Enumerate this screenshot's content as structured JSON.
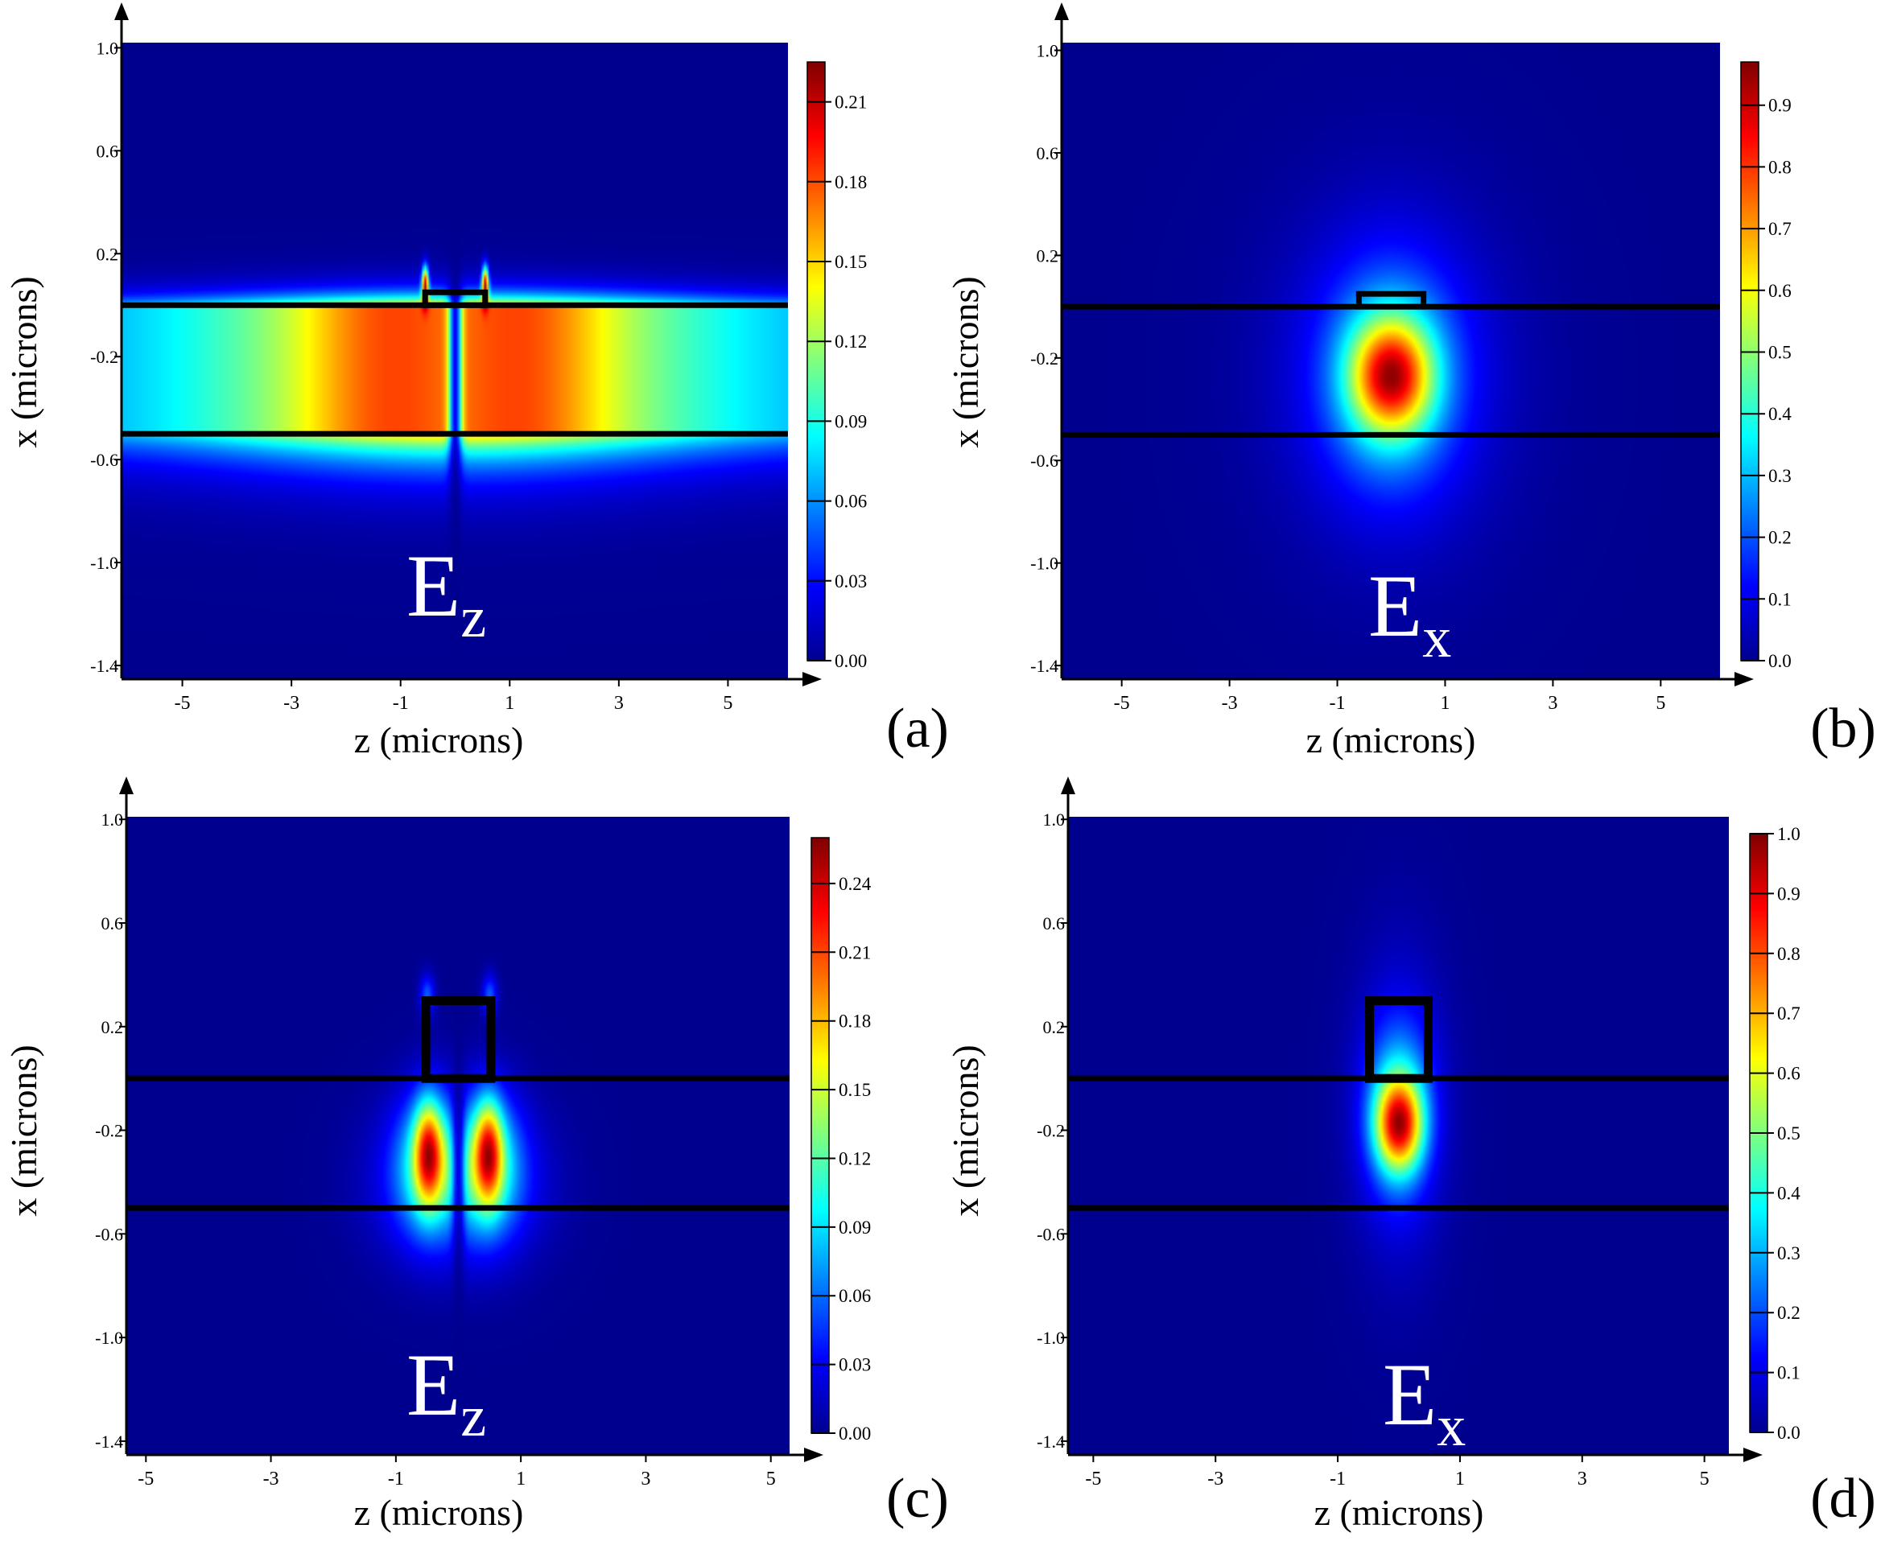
{
  "figure": {
    "colormap": [
      "#00008f",
      "#0000ff",
      "#007fff",
      "#00ffff",
      "#7fff7f",
      "#ffff00",
      "#ff7f00",
      "#ff0000",
      "#7f0000"
    ]
  },
  "chart_data": [
    {
      "id": "a",
      "type": "heatmap",
      "panel_label": "(a)",
      "field_label": "E",
      "field_subscript": "z",
      "xlabel": "z (microns)",
      "ylabel": "x (microns)",
      "xlim": [
        -6.1,
        6.1
      ],
      "ylim": [
        -1.45,
        1.02
      ],
      "xticks": [
        -5,
        -3,
        -1,
        1,
        3,
        5
      ],
      "xtick_labels": [
        "-5",
        "-3",
        "-1",
        "1",
        "3",
        "5"
      ],
      "yticks": [
        1.0,
        0.6,
        0.2,
        -0.2,
        -0.6,
        -1.0,
        -1.4
      ],
      "ytick_labels": [
        "1.0",
        "0.6",
        "0.2",
        "-0.2",
        "-0.6",
        "-1.0",
        "-1.4"
      ],
      "colorbar": {
        "min": 0,
        "max": 0.225,
        "ticks": [
          0.0,
          0.03,
          0.06,
          0.09,
          0.12,
          0.15,
          0.18,
          0.21
        ],
        "tick_labels": [
          "0.00",
          "0.03",
          "0.06",
          "0.09",
          "0.12",
          "0.15",
          "0.18",
          "0.21"
        ]
      },
      "structure": {
        "layer_top": 0.0,
        "layer_bottom": -0.5,
        "rib_halfwidth": 0.55,
        "rib_top": 0.05
      },
      "field_model": "ez_planar"
    },
    {
      "id": "b",
      "type": "heatmap",
      "panel_label": "(b)",
      "field_label": "E",
      "field_subscript": "x",
      "xlabel": "z (microns)",
      "ylabel": "x (microns)",
      "xlim": [
        -6.1,
        6.1
      ],
      "ylim": [
        -1.45,
        1.03
      ],
      "xticks": [
        -5,
        -3,
        -1,
        1,
        3,
        5
      ],
      "xtick_labels": [
        "-5",
        "-3",
        "-1",
        "1",
        "3",
        "5"
      ],
      "yticks": [
        1.0,
        0.6,
        0.2,
        -0.2,
        -0.6,
        -1.0,
        -1.4
      ],
      "ytick_labels": [
        "1.0",
        "0.6",
        "0.2",
        "-0.2",
        "-0.6",
        "-1.0",
        "-1.4"
      ],
      "colorbar": {
        "min": 0,
        "max": 0.97,
        "ticks": [
          0.0,
          0.1,
          0.2,
          0.3,
          0.4,
          0.5,
          0.6,
          0.7,
          0.8,
          0.9
        ],
        "tick_labels": [
          "0.0",
          "0.1",
          "0.2",
          "0.3",
          "0.4",
          "0.5",
          "0.6",
          "0.7",
          "0.8",
          "0.9"
        ]
      },
      "structure": {
        "layer_top": 0.0,
        "layer_bottom": -0.5,
        "rib_halfwidth": 0.6,
        "rib_top": 0.05
      },
      "field_model": "ex_planar"
    },
    {
      "id": "c",
      "type": "heatmap",
      "panel_label": "(c)",
      "field_label": "E",
      "field_subscript": "z",
      "xlabel": "z (microns)",
      "ylabel": "x (microns)",
      "xlim": [
        -5.3,
        5.3
      ],
      "ylim": [
        -1.45,
        1.01
      ],
      "xticks": [
        -5,
        -3,
        -1,
        1,
        3,
        5
      ],
      "xtick_labels": [
        "-5",
        "-3",
        "-1",
        "1",
        "3",
        "5"
      ],
      "yticks": [
        1.0,
        0.6,
        0.2,
        -0.2,
        -0.6,
        -1.0,
        -1.4
      ],
      "ytick_labels": [
        "1.0",
        "0.6",
        "0.2",
        "-0.2",
        "-0.6",
        "-1.0",
        "-1.4"
      ],
      "colorbar": {
        "min": 0,
        "max": 0.26,
        "ticks": [
          0.0,
          0.03,
          0.06,
          0.09,
          0.12,
          0.15,
          0.18,
          0.21,
          0.24
        ],
        "tick_labels": [
          "0.00",
          "0.03",
          "0.06",
          "0.09",
          "0.12",
          "0.15",
          "0.18",
          "0.21",
          "0.24"
        ]
      },
      "structure": {
        "layer_top": 0.0,
        "layer_bottom": -0.5,
        "rib_halfwidth": 0.52,
        "rib_top": 0.3
      },
      "field_model": "ez_rib"
    },
    {
      "id": "d",
      "type": "heatmap",
      "panel_label": "(d)",
      "field_label": "E",
      "field_subscript": "x",
      "xlabel": "z (microns)",
      "ylabel": "x (microns)",
      "xlim": [
        -5.4,
        5.4
      ],
      "ylim": [
        -1.45,
        1.01
      ],
      "xticks": [
        -5,
        -3,
        -1,
        1,
        3,
        5
      ],
      "xtick_labels": [
        "-5",
        "-3",
        "-1",
        "1",
        "3",
        "5"
      ],
      "yticks": [
        1.0,
        0.6,
        0.2,
        -0.2,
        -0.6,
        -1.0,
        -1.4
      ],
      "ytick_labels": [
        "1.0",
        "0.6",
        "0.2",
        "-0.2",
        "-0.6",
        "-1.0",
        "-1.4"
      ],
      "colorbar": {
        "min": 0,
        "max": 1.0,
        "ticks": [
          0.0,
          0.1,
          0.2,
          0.3,
          0.4,
          0.5,
          0.6,
          0.7,
          0.8,
          0.9,
          1.0
        ],
        "tick_labels": [
          "0.0",
          "0.1",
          "0.2",
          "0.3",
          "0.4",
          "0.5",
          "0.6",
          "0.7",
          "0.8",
          "0.9",
          "1.0"
        ]
      },
      "structure": {
        "layer_top": 0.0,
        "layer_bottom": -0.5,
        "rib_halfwidth": 0.48,
        "rib_top": 0.3
      },
      "field_model": "ex_rib"
    }
  ]
}
